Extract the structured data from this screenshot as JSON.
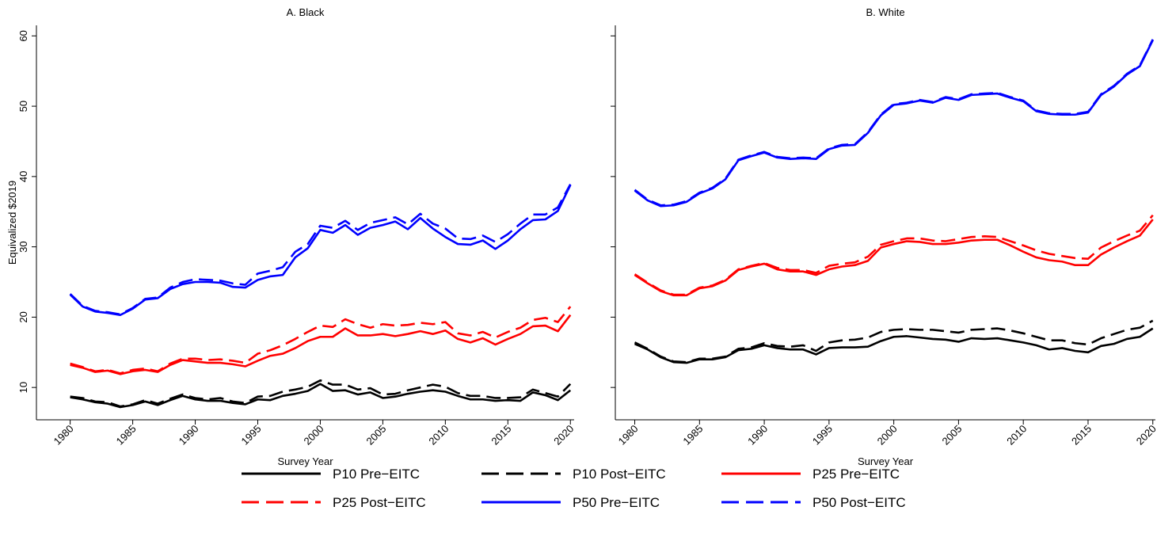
{
  "chart_data": [
    {
      "type": "line",
      "title": "A. Black",
      "xlabel": "Survey Year",
      "ylabel": "Equivalized $2019",
      "x": [
        1980,
        1981,
        1982,
        1983,
        1984,
        1985,
        1986,
        1987,
        1988,
        1989,
        1990,
        1991,
        1992,
        1993,
        1994,
        1995,
        1996,
        1997,
        1998,
        1999,
        2000,
        2001,
        2002,
        2003,
        2004,
        2005,
        2006,
        2007,
        2008,
        2009,
        2010,
        2011,
        2012,
        2013,
        2014,
        2015,
        2016,
        2017,
        2018,
        2019,
        2020
      ],
      "xlim": [
        1977.3,
        2020.3
      ],
      "xticks": [
        1980,
        1985,
        1990,
        1995,
        2000,
        2005,
        2010,
        2015,
        2020
      ],
      "ylim": [
        5.4,
        61.5
      ],
      "yticks": [
        10,
        20,
        30,
        40,
        50,
        60
      ],
      "series": [
        {
          "name": "P10 Pre−EITC",
          "color": "#000000",
          "dashed": false,
          "values": [
            8.6,
            8.3,
            7.9,
            7.7,
            7.2,
            7.5,
            8.0,
            7.5,
            8.2,
            8.8,
            8.3,
            8.1,
            8.1,
            7.8,
            7.6,
            8.3,
            8.2,
            8.8,
            9.1,
            9.5,
            10.5,
            9.5,
            9.6,
            9.0,
            9.3,
            8.5,
            8.7,
            9.1,
            9.4,
            9.6,
            9.4,
            8.8,
            8.3,
            8.3,
            8.1,
            8.2,
            8.1,
            9.3,
            8.9,
            8.2,
            9.6
          ]
        },
        {
          "name": "P10 Post−EITC",
          "color": "#000000",
          "dashed": true,
          "values": [
            8.7,
            8.5,
            8.0,
            7.9,
            7.3,
            7.6,
            8.2,
            7.7,
            8.4,
            9.0,
            8.5,
            8.3,
            8.5,
            8.0,
            7.8,
            8.7,
            8.8,
            9.4,
            9.7,
            10.1,
            11.0,
            10.4,
            10.4,
            9.7,
            9.9,
            9.0,
            9.1,
            9.6,
            10.0,
            10.4,
            10.1,
            9.2,
            8.8,
            8.8,
            8.5,
            8.5,
            8.6,
            9.7,
            9.2,
            8.7,
            10.5
          ]
        },
        {
          "name": "P25 Pre−EITC",
          "color": "#ff0000",
          "dashed": false,
          "values": [
            13.2,
            12.8,
            12.2,
            12.4,
            11.9,
            12.3,
            12.5,
            12.2,
            13.2,
            13.9,
            13.7,
            13.5,
            13.5,
            13.3,
            13.0,
            13.8,
            14.5,
            14.8,
            15.6,
            16.6,
            17.2,
            17.2,
            18.4,
            17.4,
            17.4,
            17.6,
            17.3,
            17.6,
            18.0,
            17.6,
            18.1,
            16.9,
            16.4,
            17.0,
            16.1,
            16.9,
            17.6,
            18.7,
            18.8,
            18.0,
            20.3
          ]
        },
        {
          "name": "P25 Post−EITC",
          "color": "#ff0000",
          "dashed": true,
          "values": [
            13.4,
            12.9,
            12.3,
            12.5,
            12.0,
            12.5,
            12.7,
            12.3,
            13.4,
            14.1,
            14.1,
            13.9,
            14.0,
            13.8,
            13.5,
            14.8,
            15.3,
            16.0,
            16.9,
            17.9,
            18.8,
            18.6,
            19.7,
            19.0,
            18.5,
            19.0,
            18.8,
            18.9,
            19.2,
            19.0,
            19.3,
            17.7,
            17.4,
            17.9,
            17.1,
            17.9,
            18.5,
            19.6,
            19.9,
            19.3,
            21.5
          ]
        },
        {
          "name": "P50 Pre−EITC",
          "color": "#0000ff",
          "dashed": false,
          "values": [
            23.2,
            21.5,
            20.8,
            20.6,
            20.3,
            21.2,
            22.5,
            22.7,
            24.0,
            24.7,
            25.0,
            25.0,
            24.9,
            24.3,
            24.2,
            25.3,
            25.8,
            26.0,
            28.5,
            29.8,
            32.4,
            32.0,
            33.1,
            31.7,
            32.7,
            33.1,
            33.6,
            32.5,
            34.1,
            32.6,
            31.4,
            30.4,
            30.3,
            30.9,
            29.7,
            30.9,
            32.5,
            33.8,
            33.9,
            35.1,
            38.8
          ]
        },
        {
          "name": "P50 Post−EITC",
          "color": "#0000ff",
          "dashed": true,
          "values": [
            23.3,
            21.6,
            20.9,
            20.7,
            20.4,
            21.3,
            22.6,
            22.8,
            24.2,
            25.0,
            25.4,
            25.3,
            25.2,
            24.8,
            24.6,
            26.2,
            26.6,
            27.1,
            29.3,
            30.4,
            33.0,
            32.7,
            33.7,
            32.4,
            33.4,
            33.8,
            34.2,
            33.2,
            34.7,
            33.3,
            32.6,
            31.2,
            31.1,
            31.6,
            30.7,
            31.8,
            33.3,
            34.6,
            34.6,
            35.6,
            38.9
          ]
        }
      ]
    },
    {
      "type": "line",
      "title": "B. White",
      "xlabel": "Survey Year",
      "x": [
        1980,
        1981,
        1982,
        1983,
        1984,
        1985,
        1986,
        1987,
        1988,
        1989,
        1990,
        1991,
        1992,
        1993,
        1994,
        1995,
        1996,
        1997,
        1998,
        1999,
        2000,
        2001,
        2002,
        2003,
        2004,
        2005,
        2006,
        2007,
        2008,
        2009,
        2010,
        2011,
        2012,
        2013,
        2014,
        2015,
        2016,
        2017,
        2018,
        2019,
        2020
      ],
      "xlim": [
        1978.5,
        2020.2
      ],
      "xticks": [
        1980,
        1985,
        1990,
        1995,
        2000,
        2005,
        2010,
        2015,
        2020
      ],
      "ylim": [
        5.4,
        61.5
      ],
      "series": [
        {
          "name": "P10 Pre−EITC",
          "color": "#000000",
          "dashed": false,
          "values": [
            16.2,
            15.4,
            14.3,
            13.6,
            13.5,
            14.0,
            14.0,
            14.3,
            15.3,
            15.5,
            16.0,
            15.6,
            15.4,
            15.4,
            14.7,
            15.6,
            15.7,
            15.7,
            15.8,
            16.6,
            17.2,
            17.3,
            17.1,
            16.9,
            16.8,
            16.5,
            17.0,
            16.9,
            17.0,
            16.7,
            16.4,
            16.0,
            15.4,
            15.6,
            15.2,
            15.0,
            15.9,
            16.2,
            16.9,
            17.2,
            18.4
          ]
        },
        {
          "name": "P10 Post−EITC",
          "color": "#000000",
          "dashed": true,
          "values": [
            16.4,
            15.5,
            14.4,
            13.7,
            13.6,
            14.1,
            14.1,
            14.4,
            15.5,
            15.7,
            16.3,
            15.9,
            15.8,
            16.0,
            15.2,
            16.4,
            16.7,
            16.8,
            17.1,
            17.9,
            18.2,
            18.3,
            18.2,
            18.2,
            18.0,
            17.8,
            18.2,
            18.3,
            18.4,
            18.1,
            17.7,
            17.2,
            16.7,
            16.7,
            16.3,
            16.1,
            17.0,
            17.6,
            18.2,
            18.5,
            19.5
          ]
        },
        {
          "name": "P25 Pre−EITC",
          "color": "#ff0000",
          "dashed": false,
          "values": [
            26.0,
            24.8,
            23.7,
            23.1,
            23.1,
            24.1,
            24.4,
            25.2,
            26.7,
            27.2,
            27.6,
            26.8,
            26.5,
            26.5,
            26.0,
            26.8,
            27.2,
            27.4,
            28.0,
            29.9,
            30.4,
            30.8,
            30.7,
            30.4,
            30.4,
            30.6,
            30.9,
            31.0,
            31.0,
            30.2,
            29.3,
            28.5,
            28.1,
            27.9,
            27.4,
            27.4,
            28.9,
            29.9,
            30.8,
            31.6,
            33.9
          ]
        },
        {
          "name": "P25 Post−EITC",
          "color": "#ff0000",
          "dashed": true,
          "values": [
            26.1,
            24.9,
            23.8,
            23.2,
            23.2,
            24.2,
            24.5,
            25.3,
            26.8,
            27.3,
            27.7,
            27.0,
            26.7,
            26.7,
            26.3,
            27.3,
            27.6,
            27.8,
            28.6,
            30.3,
            30.8,
            31.2,
            31.2,
            30.9,
            30.8,
            31.1,
            31.4,
            31.5,
            31.4,
            30.8,
            30.2,
            29.5,
            29.0,
            28.7,
            28.4,
            28.3,
            29.9,
            30.8,
            31.6,
            32.3,
            34.5
          ]
        },
        {
          "name": "P50 Pre−EITC",
          "color": "#0000ff",
          "dashed": false,
          "values": [
            38.0,
            36.6,
            35.8,
            35.9,
            36.4,
            37.6,
            38.3,
            39.6,
            42.3,
            42.9,
            43.4,
            42.7,
            42.5,
            42.6,
            42.5,
            43.9,
            44.4,
            44.5,
            46.2,
            48.7,
            50.2,
            50.4,
            50.8,
            50.5,
            51.2,
            50.9,
            51.6,
            51.7,
            51.8,
            51.2,
            50.7,
            49.3,
            48.9,
            48.8,
            48.8,
            49.1,
            51.6,
            52.8,
            54.5,
            55.7,
            59.4
          ]
        },
        {
          "name": "P50 Post−EITC",
          "color": "#0000ff",
          "dashed": true,
          "values": [
            38.1,
            36.7,
            35.9,
            36.0,
            36.5,
            37.7,
            38.4,
            39.7,
            42.4,
            43.0,
            43.5,
            42.8,
            42.6,
            42.7,
            42.6,
            44.0,
            44.5,
            44.6,
            46.3,
            48.8,
            50.3,
            50.5,
            50.9,
            50.6,
            51.3,
            51.0,
            51.7,
            51.8,
            51.9,
            51.3,
            50.8,
            49.4,
            49.0,
            48.9,
            48.9,
            49.2,
            51.7,
            52.9,
            54.6,
            55.8,
            59.5
          ]
        }
      ]
    }
  ]
}
